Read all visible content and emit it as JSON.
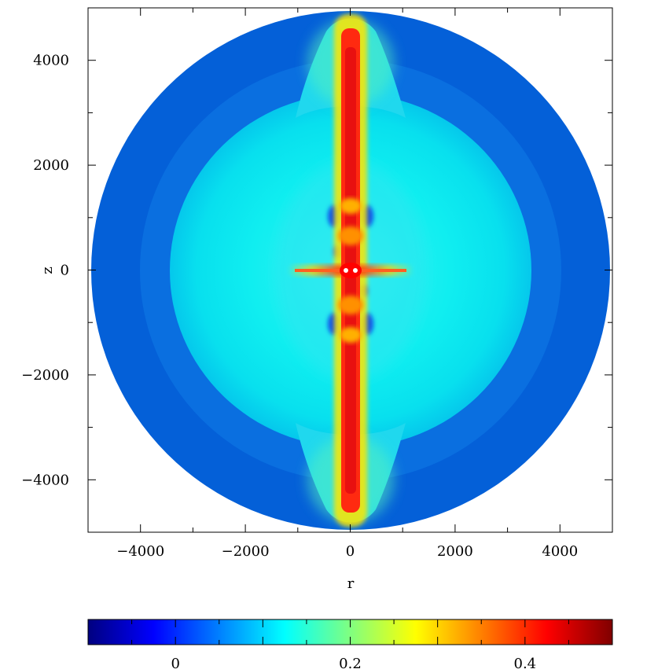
{
  "chart_data": {
    "type": "heatmap",
    "title": "",
    "xlabel": "r",
    "ylabel": "z",
    "xlim": [
      -5000,
      5000
    ],
    "ylim": [
      -5000,
      5000
    ],
    "xticks": [
      -4000,
      -2000,
      0,
      2000,
      4000
    ],
    "yticks": [
      -4000,
      -2000,
      0,
      2000,
      4000
    ],
    "xtick_labels": [
      "−4000",
      "−2000",
      "0",
      "2000",
      "4000"
    ],
    "ytick_labels": [
      "4000",
      "2000",
      "0",
      "−2000",
      "−4000"
    ],
    "grid": false,
    "domain_radius": 4950,
    "colorbar": {
      "orientation": "horizontal",
      "position": "bottom",
      "range": [
        -0.1,
        0.5
      ],
      "ticks": [
        0,
        0.2,
        0.4
      ],
      "tick_labels": [
        "0",
        "0.2",
        "0.4"
      ],
      "colormap": "jet"
    },
    "features": {
      "outer_shell": {
        "r_min": 4000,
        "r_max": 4950,
        "value": -0.02
      },
      "inner_cocoon": {
        "radius": 3450,
        "value": 0.08
      },
      "polar_jet": {
        "half_width": 120,
        "z_extent": 4900,
        "value": 0.43
      },
      "equatorial_filament": {
        "r_extent": 1150,
        "value": 0.3
      }
    }
  },
  "colors": {
    "colormap_stops": [
      "#000080",
      "#0000ff",
      "#0080ff",
      "#00ffff",
      "#80ff80",
      "#ffff00",
      "#ff8000",
      "#ff0000",
      "#800000"
    ],
    "outer_shell": "#0460d8",
    "cocoon": "#12f1ef",
    "jet_core": "#ff1a1a"
  }
}
